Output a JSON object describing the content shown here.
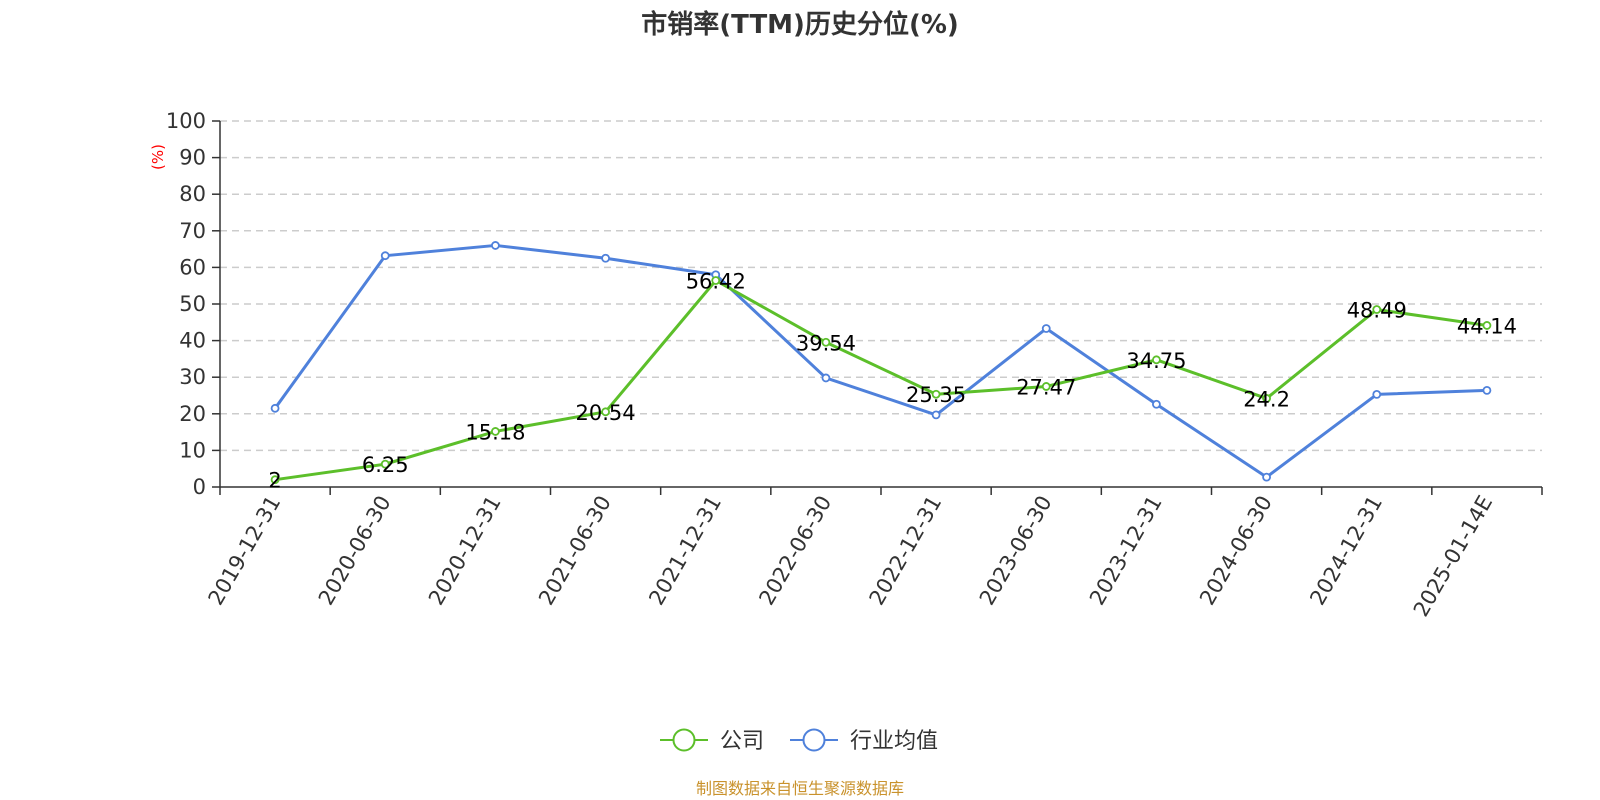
{
  "chart_data": {
    "type": "line",
    "title": "市销率(TTM)历史分位(%)",
    "unit_label": "(%)",
    "categories": [
      "2019-12-31",
      "2020-06-30",
      "2020-12-31",
      "2021-06-30",
      "2021-12-31",
      "2022-06-30",
      "2022-12-31",
      "2023-06-30",
      "2023-12-31",
      "2024-06-30",
      "2024-12-31",
      "2025-01-14E"
    ],
    "ylim": [
      0,
      100
    ],
    "yticks": [
      0,
      10,
      20,
      30,
      40,
      50,
      60,
      70,
      80,
      90,
      100
    ],
    "grid": true,
    "legend_position": "bottom",
    "series": [
      {
        "name": "公司",
        "color": "#5cbf2a",
        "values": [
          2,
          6.25,
          15.18,
          20.54,
          56.42,
          39.54,
          25.35,
          27.47,
          34.75,
          24.2,
          48.49,
          44.14
        ],
        "labels": [
          "2",
          "6.25",
          "15.18",
          "20.54",
          "56.42",
          "39.54",
          "25.35",
          "27.47",
          "34.75",
          "24.2",
          "48.49",
          "44.14"
        ]
      },
      {
        "name": "行业均值",
        "color": "#4f81db",
        "values": [
          21.5,
          63.2,
          66,
          62.5,
          58,
          29.8,
          19.7,
          43.3,
          22.6,
          2.7,
          25.3,
          26.4
        ]
      }
    ]
  },
  "source": "制图数据来自恒生聚源数据库"
}
